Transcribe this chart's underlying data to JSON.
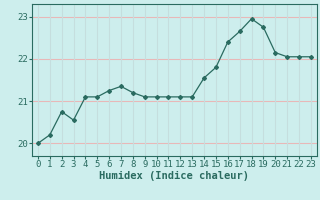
{
  "x": [
    0,
    1,
    2,
    3,
    4,
    5,
    6,
    7,
    8,
    9,
    10,
    11,
    12,
    13,
    14,
    15,
    16,
    17,
    18,
    19,
    20,
    21,
    22,
    23
  ],
  "y": [
    20.0,
    20.2,
    20.75,
    20.55,
    21.1,
    21.1,
    21.25,
    21.35,
    21.2,
    21.1,
    21.1,
    21.1,
    21.1,
    21.1,
    21.55,
    21.8,
    22.4,
    22.65,
    22.95,
    22.75,
    22.15,
    22.05,
    22.05,
    22.05
  ],
  "line_color": "#2a6b60",
  "marker": "D",
  "marker_size": 2.0,
  "bg_color": "#cdeeed",
  "grid_color_h": "#e8b8b8",
  "grid_color_v": "#c5dede",
  "xlabel": "Humidex (Indice chaleur)",
  "xlim": [
    -0.5,
    23.5
  ],
  "ylim": [
    19.7,
    23.3
  ],
  "yticks": [
    20,
    21,
    22,
    23
  ],
  "xticks": [
    0,
    1,
    2,
    3,
    4,
    5,
    6,
    7,
    8,
    9,
    10,
    11,
    12,
    13,
    14,
    15,
    16,
    17,
    18,
    19,
    20,
    21,
    22,
    23
  ],
  "tick_fontsize": 6.5,
  "xlabel_fontsize": 7.5
}
